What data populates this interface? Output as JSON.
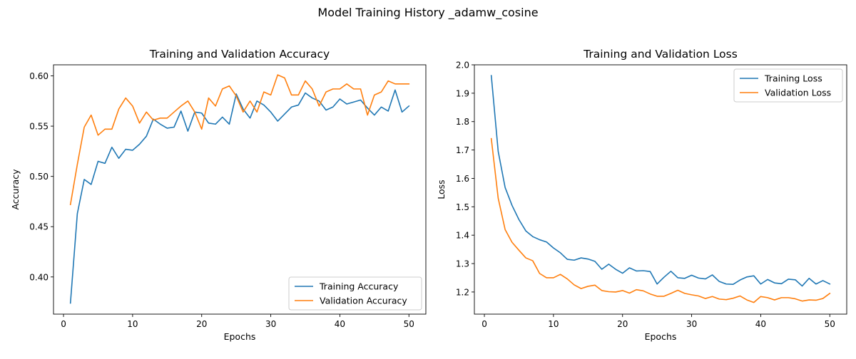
{
  "figure": {
    "suptitle": "Model Training History _adamw_cosine"
  },
  "colors": {
    "training": "#1f77b4",
    "validation": "#ff7f0e",
    "axes": "#000000",
    "legend_border": "#cccccc"
  },
  "chart_data": [
    {
      "type": "line",
      "title": "Training and Validation Accuracy",
      "xlabel": "Epochs",
      "ylabel": "Accuracy",
      "xlim": [
        -1.45,
        52.45
      ],
      "ylim": [
        0.363,
        0.611
      ],
      "xticks": [
        0,
        10,
        20,
        30,
        40,
        50
      ],
      "yticks": [
        0.4,
        0.45,
        0.5,
        0.55,
        0.6
      ],
      "ytick_labels": [
        "0.40",
        "0.45",
        "0.50",
        "0.55",
        "0.60"
      ],
      "grid": false,
      "legend": "lower-right",
      "x": [
        1,
        2,
        3,
        4,
        5,
        6,
        7,
        8,
        9,
        10,
        11,
        12,
        13,
        14,
        15,
        16,
        17,
        18,
        19,
        20,
        21,
        22,
        23,
        24,
        25,
        26,
        27,
        28,
        29,
        30,
        31,
        32,
        33,
        34,
        35,
        36,
        37,
        38,
        39,
        40,
        41,
        42,
        43,
        44,
        45,
        46,
        47,
        48,
        49,
        50
      ],
      "series": [
        {
          "name": "Training Accuracy",
          "color": "#1f77b4",
          "values": [
            0.374,
            0.463,
            0.497,
            0.492,
            0.515,
            0.513,
            0.529,
            0.518,
            0.527,
            0.526,
            0.532,
            0.54,
            0.557,
            0.552,
            0.548,
            0.549,
            0.565,
            0.545,
            0.564,
            0.563,
            0.553,
            0.552,
            0.559,
            0.552,
            0.582,
            0.567,
            0.558,
            0.575,
            0.571,
            0.564,
            0.555,
            0.562,
            0.569,
            0.571,
            0.583,
            0.578,
            0.575,
            0.566,
            0.569,
            0.577,
            0.572,
            0.574,
            0.576,
            0.568,
            0.561,
            0.569,
            0.565,
            0.586,
            0.564,
            0.57
          ]
        },
        {
          "name": "Validation Accuracy",
          "color": "#ff7f0e",
          "values": [
            0.472,
            0.512,
            0.549,
            0.561,
            0.541,
            0.547,
            0.547,
            0.567,
            0.578,
            0.57,
            0.553,
            0.564,
            0.556,
            0.558,
            0.558,
            0.564,
            0.57,
            0.575,
            0.564,
            0.547,
            0.578,
            0.57,
            0.587,
            0.59,
            0.58,
            0.564,
            0.575,
            0.564,
            0.584,
            0.581,
            0.601,
            0.598,
            0.581,
            0.581,
            0.595,
            0.587,
            0.57,
            0.584,
            0.587,
            0.587,
            0.592,
            0.587,
            0.587,
            0.561,
            0.581,
            0.584,
            0.595,
            0.592,
            0.592,
            0.592
          ]
        }
      ]
    },
    {
      "type": "line",
      "title": "Training and Validation Loss",
      "xlabel": "Epochs",
      "ylabel": "Loss",
      "xlim": [
        -1.45,
        52.45
      ],
      "ylim": [
        1.122,
        2.0
      ],
      "xticks": [
        0,
        10,
        20,
        30,
        40,
        50
      ],
      "yticks": [
        1.2,
        1.3,
        1.4,
        1.5,
        1.6,
        1.7,
        1.8,
        1.9,
        2.0
      ],
      "ytick_labels": [
        "1.2",
        "1.3",
        "1.4",
        "1.5",
        "1.6",
        "1.7",
        "1.8",
        "1.9",
        "2.0"
      ],
      "grid": false,
      "legend": "upper-right",
      "x": [
        1,
        2,
        3,
        4,
        5,
        6,
        7,
        8,
        9,
        10,
        11,
        12,
        13,
        14,
        15,
        16,
        17,
        18,
        19,
        20,
        21,
        22,
        23,
        24,
        25,
        26,
        27,
        28,
        29,
        30,
        31,
        32,
        33,
        34,
        35,
        36,
        37,
        38,
        39,
        40,
        41,
        42,
        43,
        44,
        45,
        46,
        47,
        48,
        49,
        50
      ],
      "series": [
        {
          "name": "Training Loss",
          "color": "#1f77b4",
          "values": [
            1.962,
            1.695,
            1.568,
            1.505,
            1.455,
            1.415,
            1.395,
            1.384,
            1.376,
            1.355,
            1.338,
            1.315,
            1.312,
            1.32,
            1.316,
            1.308,
            1.28,
            1.298,
            1.28,
            1.266,
            1.285,
            1.274,
            1.275,
            1.272,
            1.228,
            1.252,
            1.273,
            1.25,
            1.248,
            1.259,
            1.249,
            1.246,
            1.26,
            1.237,
            1.228,
            1.227,
            1.242,
            1.253,
            1.257,
            1.228,
            1.244,
            1.232,
            1.229,
            1.245,
            1.243,
            1.221,
            1.248,
            1.228,
            1.24,
            1.228
          ]
        },
        {
          "name": "Validation Loss",
          "color": "#ff7f0e",
          "values": [
            1.74,
            1.53,
            1.42,
            1.375,
            1.347,
            1.32,
            1.31,
            1.265,
            1.25,
            1.25,
            1.262,
            1.246,
            1.225,
            1.212,
            1.22,
            1.224,
            1.205,
            1.201,
            1.2,
            1.205,
            1.196,
            1.208,
            1.204,
            1.193,
            1.185,
            1.185,
            1.195,
            1.206,
            1.195,
            1.19,
            1.186,
            1.177,
            1.184,
            1.175,
            1.173,
            1.178,
            1.186,
            1.172,
            1.163,
            1.184,
            1.18,
            1.172,
            1.18,
            1.18,
            1.176,
            1.168,
            1.172,
            1.171,
            1.177,
            1.195
          ]
        }
      ]
    }
  ]
}
